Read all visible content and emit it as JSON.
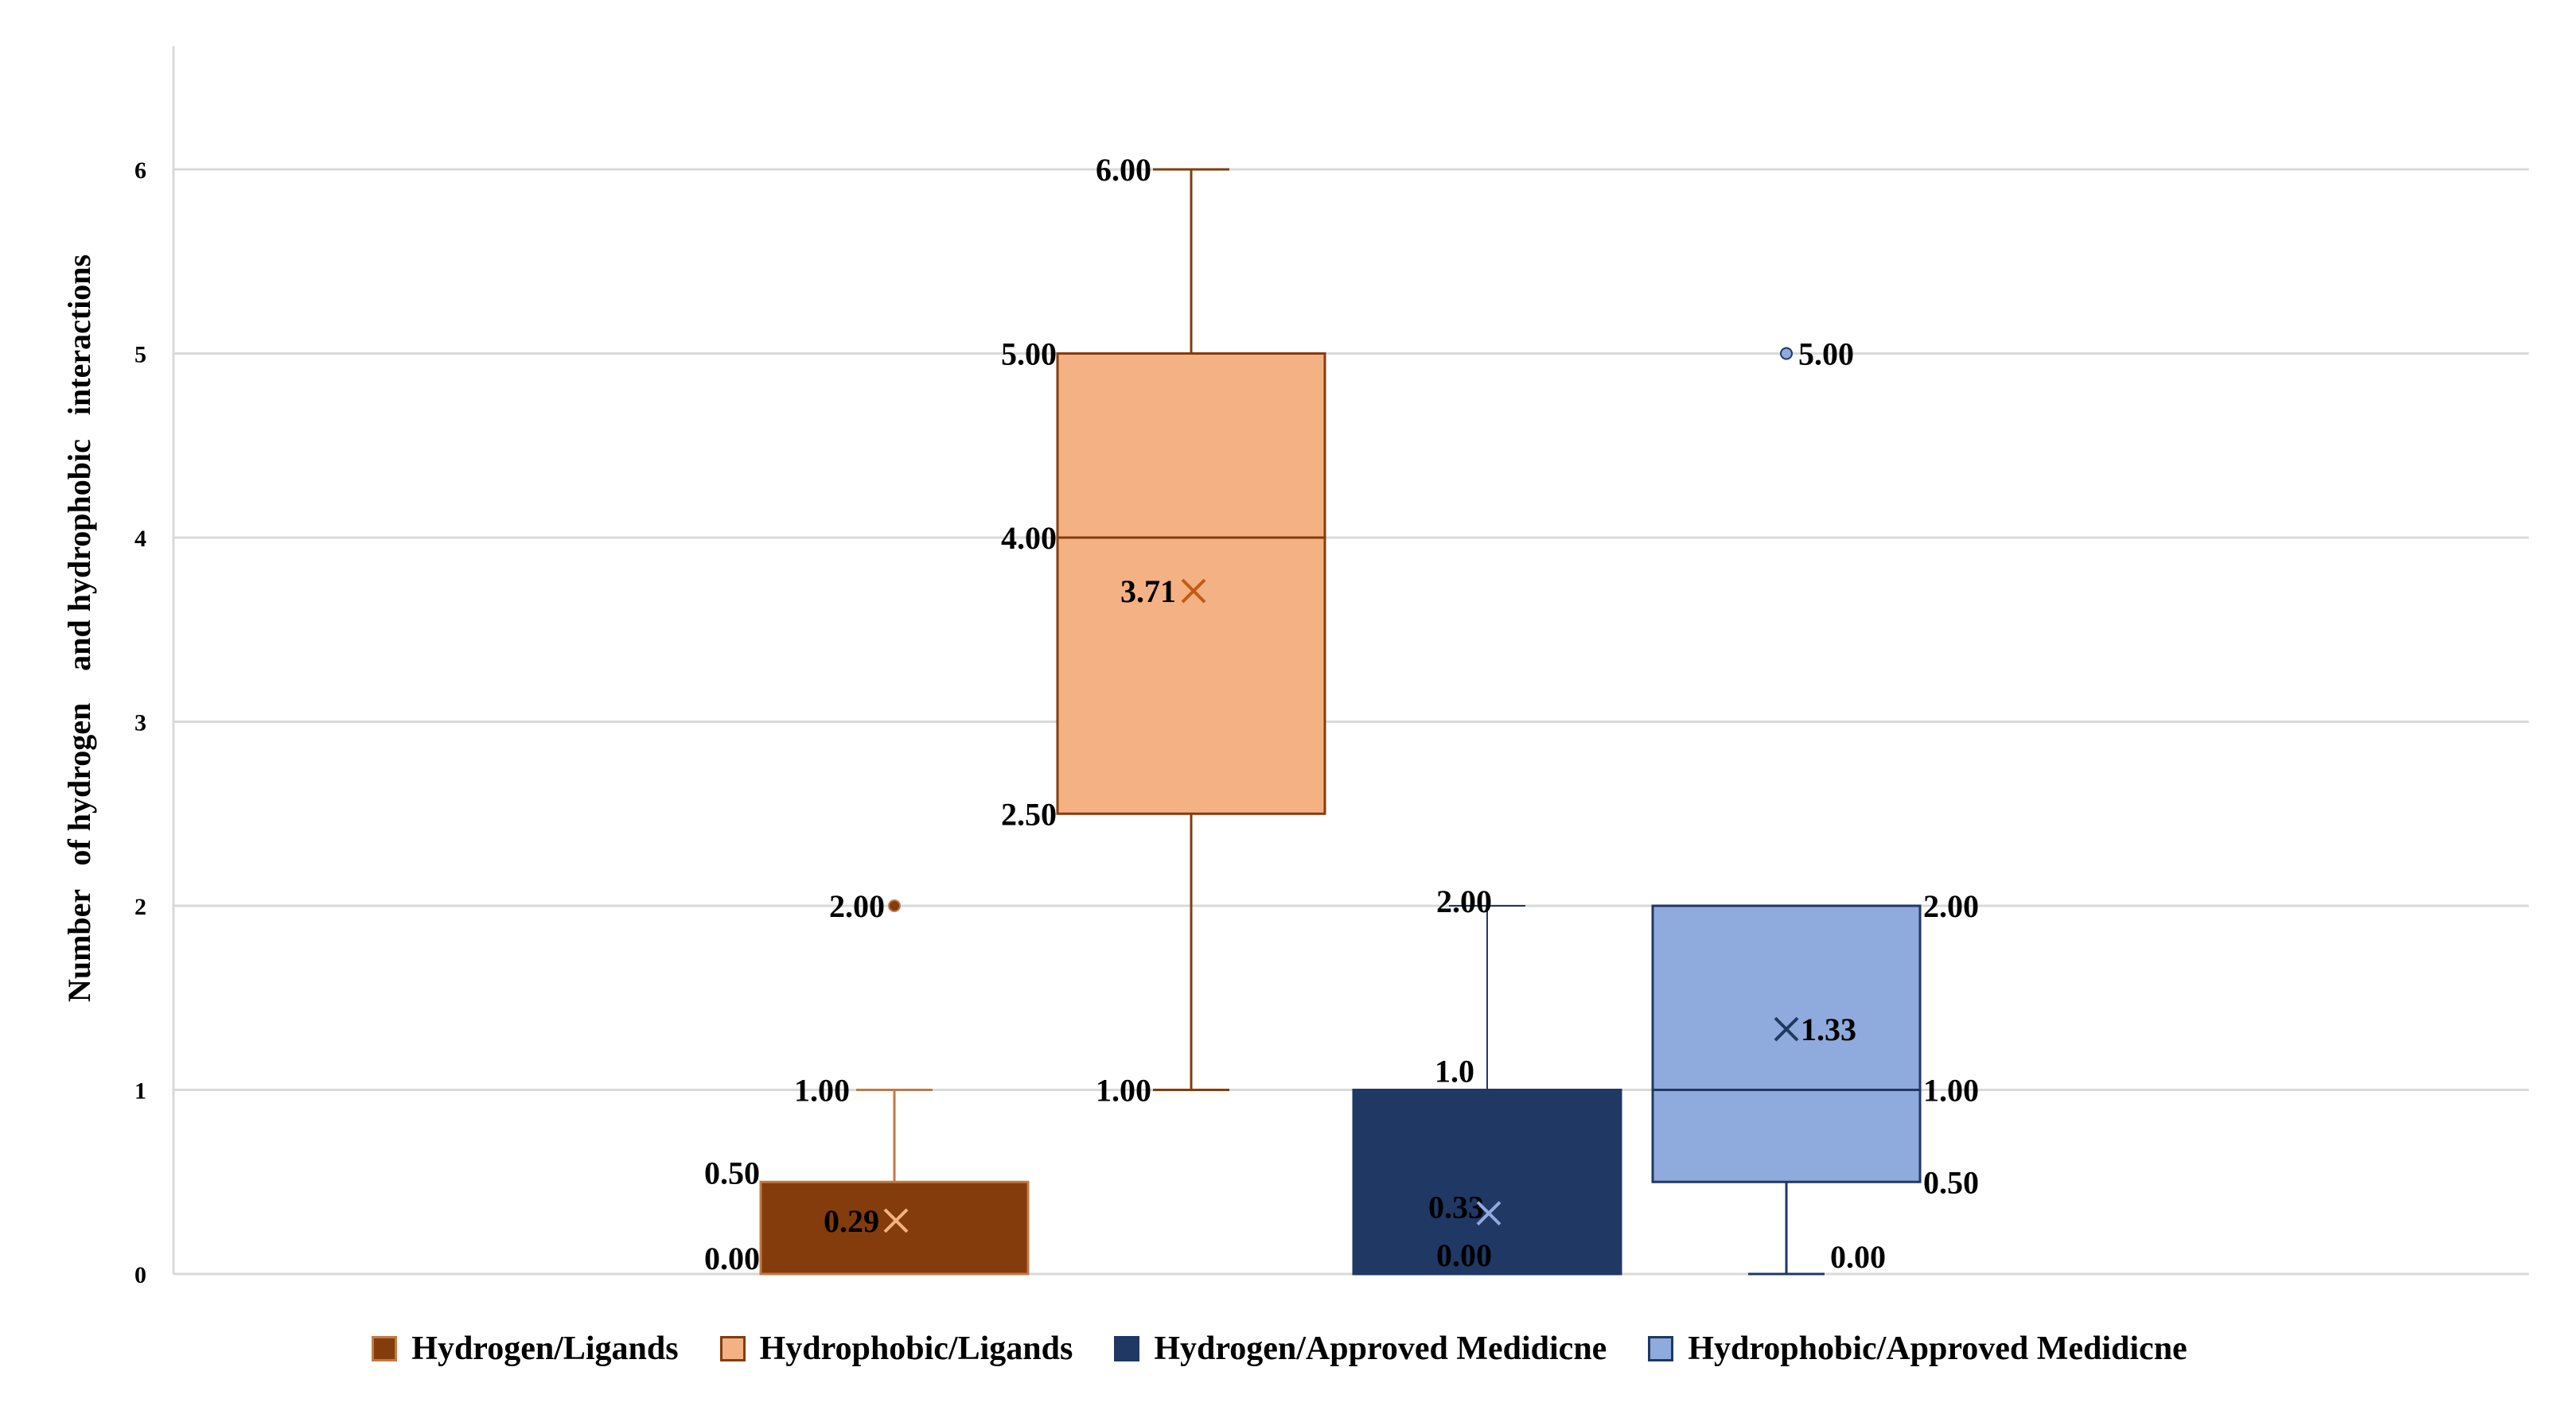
{
  "chart_data": {
    "type": "box",
    "title": "",
    "xlabel": "",
    "ylabel": "Number   of hydrogen    and hydrophobic   interactions",
    "ylim": [
      0,
      6.6
    ],
    "yticks": [
      "0",
      "1",
      "2",
      "3",
      "4",
      "5",
      "6"
    ],
    "grid": true,
    "legend_position": "bottom",
    "series": [
      {
        "name": "Hydrogen/Ligands",
        "color": "#843c0c",
        "edge": "#c07a44",
        "min": 0,
        "q1": 0,
        "median": 0,
        "q3": 0.5,
        "max": 1,
        "mean": 0.29,
        "outliers": [
          2
        ],
        "labels": {
          "min": "0.00",
          "q3": "0.50",
          "max": "1.00",
          "mean": "0.29",
          "outlier": "2.00"
        }
      },
      {
        "name": "Hydrophobic/Ligands",
        "color": "#f4b183",
        "edge": "#843c0c",
        "min": 1,
        "q1": 2.5,
        "median": 4,
        "q3": 5,
        "max": 6,
        "mean": 3.71,
        "outliers": [],
        "labels": {
          "min": "1.00",
          "q1": "2.50",
          "median": "4.00",
          "q3": "5.00",
          "max": "6.00",
          "mean": "3.71"
        }
      },
      {
        "name": "Hydrogen/Approved Medidicne",
        "color": "#203864",
        "edge": "#203864",
        "min": 0,
        "q1": 0,
        "median": 0,
        "q3": 1,
        "max": 2,
        "mean": 0.33,
        "outliers": [],
        "labels": {
          "min": "0.00",
          "q3": "1.0",
          "max": "2.00",
          "mean": "0.33"
        }
      },
      {
        "name": "Hydrophobic/Approved Medidicne",
        "color": "#8faadc",
        "edge": "#203864",
        "min": 0,
        "q1": 0.5,
        "median": 1,
        "q3": 2,
        "max": 2,
        "mean": 1.33,
        "outliers": [
          5
        ],
        "labels": {
          "min": "0.00",
          "q1": "0.50",
          "median": "1.00",
          "q3": "2.00",
          "mean": "1.33",
          "outlier": "5.00"
        }
      }
    ]
  }
}
